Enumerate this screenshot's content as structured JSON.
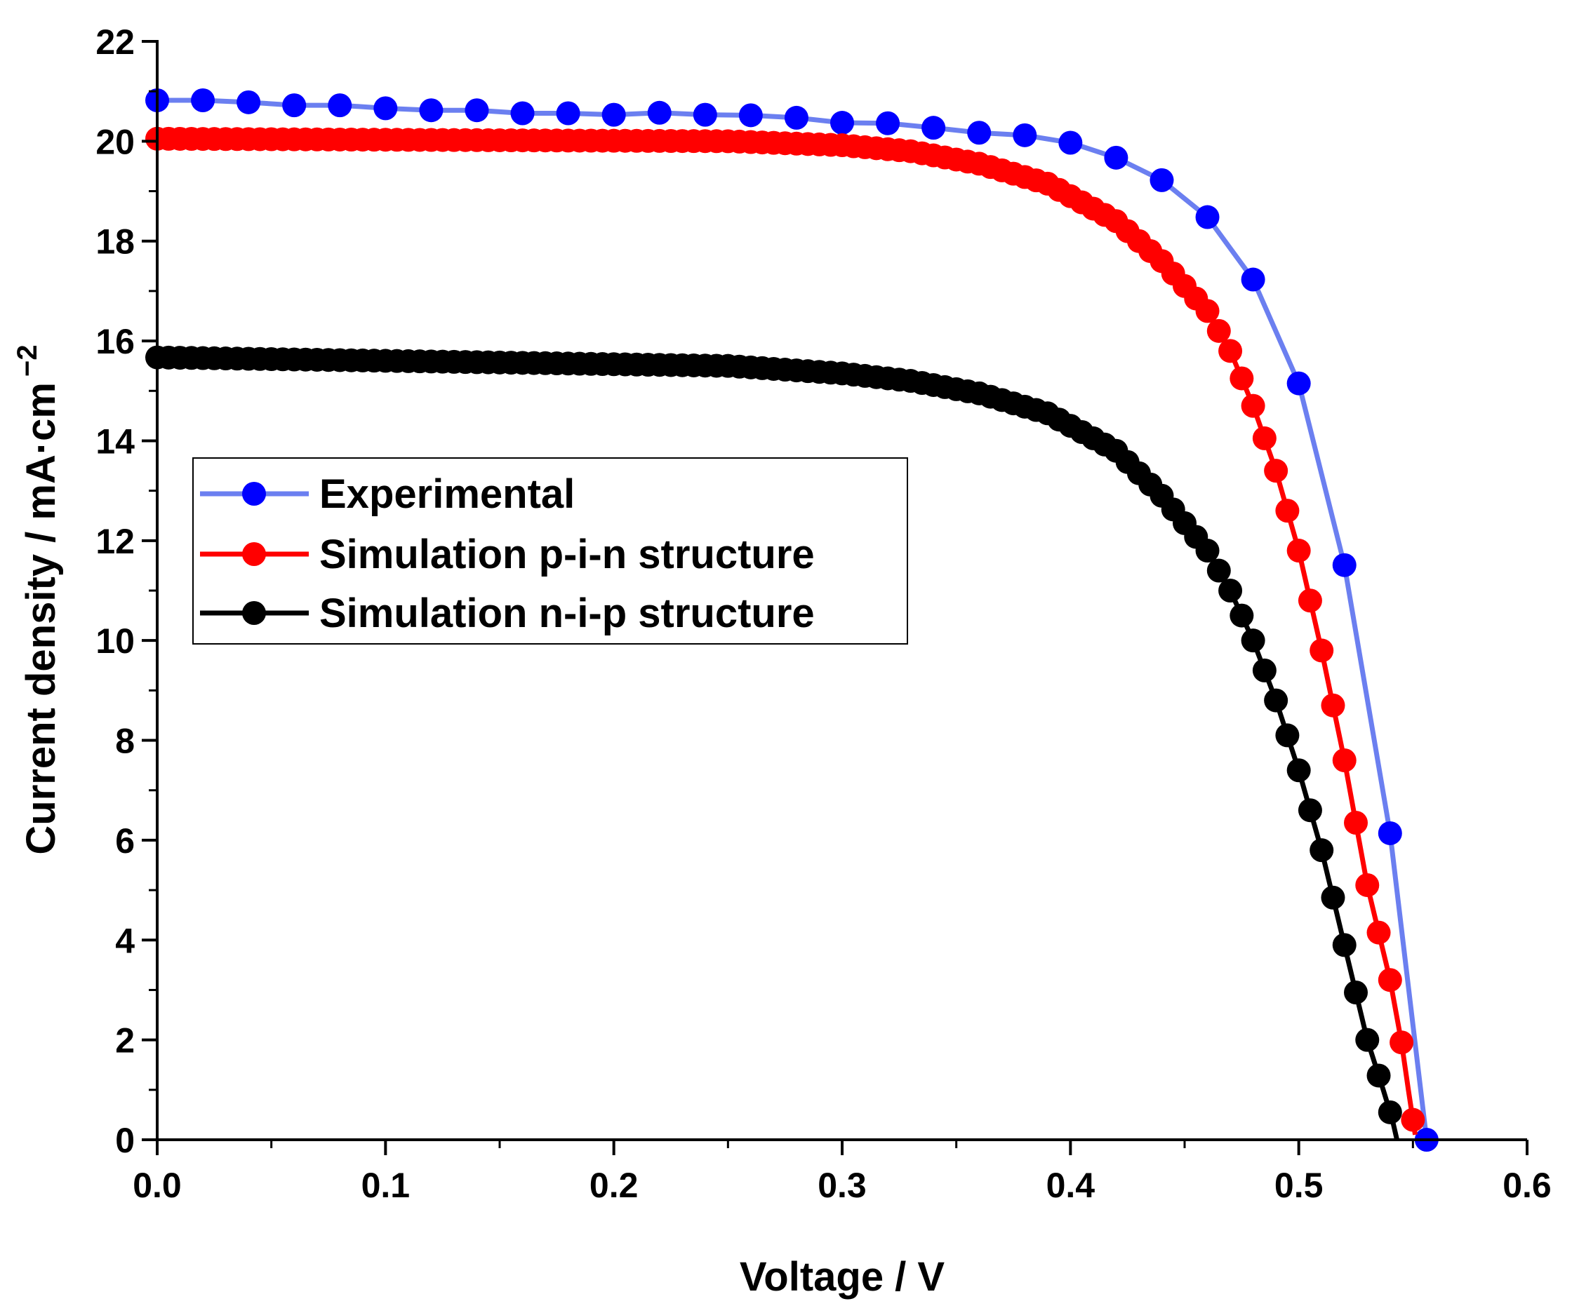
{
  "chart_data": {
    "type": "line",
    "title": "",
    "xlabel": "Voltage / V",
    "ylabel": "Current density / mA·cm",
    "ylabel_sup": "−2",
    "xlim": [
      0.0,
      0.6
    ],
    "ylim": [
      0,
      22
    ],
    "xticks": [
      0.0,
      0.1,
      0.2,
      0.3,
      0.4,
      0.5,
      0.6
    ],
    "xtick_labels": [
      "0.0",
      "0.1",
      "0.2",
      "0.3",
      "0.4",
      "0.5",
      "0.6"
    ],
    "yticks": [
      0,
      2,
      4,
      6,
      8,
      10,
      12,
      14,
      16,
      18,
      20,
      22
    ],
    "ytick_labels": [
      "0",
      "2",
      "4",
      "6",
      "8",
      "10",
      "12",
      "14",
      "16",
      "18",
      "20",
      "22"
    ],
    "grid": false,
    "legend_position": "middle-left",
    "series": [
      {
        "name": "Experimental",
        "color": "#0000ff",
        "line_color": "#6b7ff0",
        "x": [
          0.0,
          0.02,
          0.04,
          0.06,
          0.08,
          0.1,
          0.12,
          0.14,
          0.16,
          0.18,
          0.2,
          0.22,
          0.24,
          0.26,
          0.28,
          0.3,
          0.32,
          0.34,
          0.36,
          0.38,
          0.4,
          0.42,
          0.44,
          0.46,
          0.48,
          0.5,
          0.52,
          0.54,
          0.556
        ],
        "y": [
          20.82,
          20.82,
          20.78,
          20.72,
          20.72,
          20.66,
          20.62,
          20.62,
          20.56,
          20.56,
          20.53,
          20.57,
          20.53,
          20.52,
          20.47,
          20.37,
          20.36,
          20.27,
          20.17,
          20.12,
          19.97,
          19.67,
          19.22,
          18.48,
          17.23,
          15.15,
          11.51,
          6.14,
          0.0
        ]
      },
      {
        "name": "Simulation p-i-n structure",
        "color": "#ff0000",
        "line_color": "#ff0000",
        "x": [
          0.0,
          0.25,
          0.3,
          0.33,
          0.36,
          0.39,
          0.42,
          0.44,
          0.46,
          0.47,
          0.48,
          0.49,
          0.5,
          0.51,
          0.52,
          0.53,
          0.54,
          0.545,
          0.548,
          0.551
        ],
        "y": [
          20.05,
          20.0,
          19.92,
          19.8,
          19.55,
          19.15,
          18.4,
          17.6,
          16.6,
          15.8,
          14.7,
          13.4,
          11.8,
          9.8,
          7.6,
          5.1,
          3.2,
          1.95,
          1.0,
          0.1
        ],
        "marker_step": 0.005
      },
      {
        "name": "Simulation n-i-p structure",
        "color": "#000000",
        "line_color": "#000000",
        "x": [
          0.0,
          0.25,
          0.3,
          0.33,
          0.36,
          0.39,
          0.42,
          0.44,
          0.46,
          0.47,
          0.48,
          0.49,
          0.5,
          0.51,
          0.52,
          0.53,
          0.537,
          0.541,
          0.543
        ],
        "y": [
          15.67,
          15.5,
          15.35,
          15.2,
          14.95,
          14.55,
          13.8,
          12.9,
          11.8,
          11.0,
          10.0,
          8.8,
          7.4,
          5.8,
          3.9,
          2.0,
          1.0,
          0.4,
          0.0
        ],
        "marker_step": 0.005
      }
    ]
  }
}
